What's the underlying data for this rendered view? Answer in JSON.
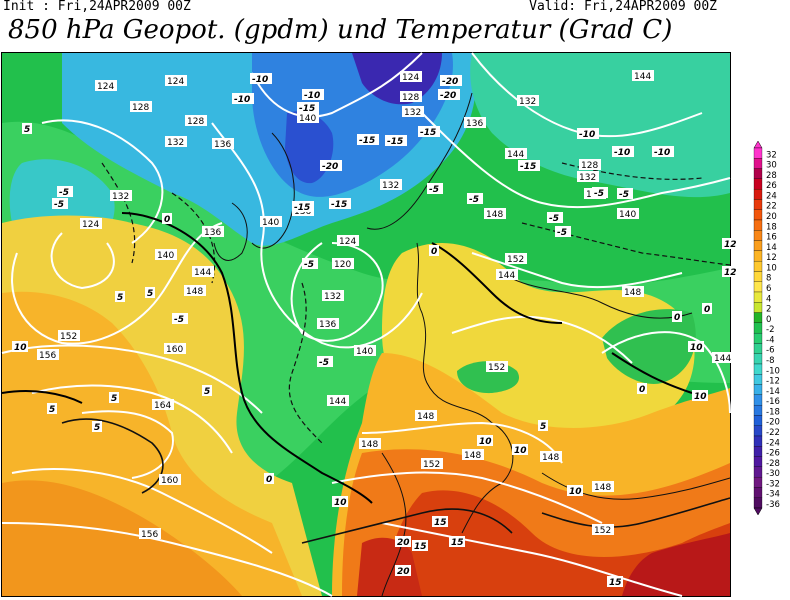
{
  "header": {
    "init_label": "Init : Fri,24APR2009 00Z",
    "valid_label": "Valid: Fri,24APR2009 00Z",
    "title": "850 hPa Geopot. (gpdm) und Temperatur (Grad C)"
  },
  "legend": {
    "ticks": [
      "32",
      "30",
      "28",
      "26",
      "24",
      "22",
      "20",
      "18",
      "16",
      "14",
      "12",
      "10",
      "8",
      "6",
      "4",
      "2",
      "0",
      "-2",
      "-4",
      "-6",
      "-8",
      "-10",
      "-12",
      "-14",
      "-16",
      "-18",
      "-20",
      "-22",
      "-24",
      "-26",
      "-28",
      "-30",
      "-32",
      "-34",
      "-36"
    ],
    "colors": [
      "#ff33cc",
      "#e0108c",
      "#b0004a",
      "#c80020",
      "#d81a0e",
      "#e83a0c",
      "#f2560c",
      "#f66e10",
      "#f88616",
      "#fa9e1c",
      "#fcb424",
      "#fec82e",
      "#ffd83a",
      "#ffe64c",
      "#e8e83c",
      "#c8e630",
      "#22b428",
      "#20c050",
      "#28cc70",
      "#30d090",
      "#38d4b0",
      "#40d8cc",
      "#40c8e0",
      "#38b0e8",
      "#3090e8",
      "#2878e0",
      "#2060d8",
      "#2848c8",
      "#3030b8",
      "#4020a8",
      "#5018a0",
      "#601890",
      "#701880",
      "#601070",
      "#500c60"
    ]
  },
  "map": {
    "contour_labels": [
      {
        "t": "124",
        "c": "w"
      },
      {
        "t": "124",
        "c": "w"
      },
      {
        "t": "124",
        "c": "w"
      },
      {
        "t": "124",
        "c": "w"
      },
      {
        "t": "124",
        "c": "w"
      },
      {
        "t": "128",
        "c": "w"
      },
      {
        "t": "128",
        "c": "w"
      },
      {
        "t": "128",
        "c": "w"
      },
      {
        "t": "128",
        "c": "w"
      },
      {
        "t": "132",
        "c": "w"
      },
      {
        "t": "132",
        "c": "w"
      },
      {
        "t": "132",
        "c": "w"
      },
      {
        "t": "132",
        "c": "w"
      },
      {
        "t": "132",
        "c": "w"
      },
      {
        "t": "132",
        "c": "w"
      },
      {
        "t": "132",
        "c": "w"
      },
      {
        "t": "136",
        "c": "w"
      },
      {
        "t": "136",
        "c": "w"
      },
      {
        "t": "136",
        "c": "w"
      },
      {
        "t": "136",
        "c": "w"
      },
      {
        "t": "136",
        "c": "w"
      },
      {
        "t": "136",
        "c": "w"
      },
      {
        "t": "140",
        "c": "w"
      },
      {
        "t": "140",
        "c": "w"
      },
      {
        "t": "140",
        "c": "w"
      },
      {
        "t": "140",
        "c": "w"
      },
      {
        "t": "140",
        "c": "w"
      },
      {
        "t": "144",
        "c": "w"
      },
      {
        "t": "144",
        "c": "w"
      },
      {
        "t": "144",
        "c": "w"
      },
      {
        "t": "144",
        "c": "w"
      },
      {
        "t": "144",
        "c": "w"
      },
      {
        "t": "144",
        "c": "w"
      },
      {
        "t": "148",
        "c": "w"
      },
      {
        "t": "148",
        "c": "w"
      },
      {
        "t": "148",
        "c": "w"
      },
      {
        "t": "148",
        "c": "w"
      },
      {
        "t": "148",
        "c": "w"
      },
      {
        "t": "148",
        "c": "w"
      },
      {
        "t": "148",
        "c": "w"
      },
      {
        "t": "148",
        "c": "w"
      },
      {
        "t": "152",
        "c": "w"
      },
      {
        "t": "152",
        "c": "w"
      },
      {
        "t": "152",
        "c": "w"
      },
      {
        "t": "152",
        "c": "w"
      },
      {
        "t": "152",
        "c": "w"
      },
      {
        "t": "156",
        "c": "w"
      },
      {
        "t": "156",
        "c": "w"
      },
      {
        "t": "160",
        "c": "w"
      },
      {
        "t": "160",
        "c": "w"
      },
      {
        "t": "164",
        "c": "w"
      },
      {
        "t": "120",
        "c": "w"
      },
      {
        "t": "12",
        "c": "w"
      },
      {
        "t": "12",
        "c": "w"
      },
      {
        "t": "-10",
        "c": "w"
      },
      {
        "t": "-10",
        "c": "w"
      },
      {
        "t": "-10",
        "c": "w"
      },
      {
        "t": "-10",
        "c": "w"
      },
      {
        "t": "-10",
        "c": "w"
      },
      {
        "t": "-10",
        "c": "w"
      },
      {
        "t": "-15",
        "c": "w"
      },
      {
        "t": "-15",
        "c": "w"
      },
      {
        "t": "-15",
        "c": "w"
      },
      {
        "t": "-15",
        "c": "w"
      },
      {
        "t": "-15",
        "c": "w"
      },
      {
        "t": "-15",
        "c": "w"
      },
      {
        "t": "-15",
        "c": "w"
      },
      {
        "t": "-20",
        "c": "w"
      },
      {
        "t": "-20",
        "c": "w"
      },
      {
        "t": "-20",
        "c": "w"
      },
      {
        "t": "-5",
        "c": "w"
      },
      {
        "t": "-5",
        "c": "w"
      },
      {
        "t": "-5",
        "c": "w"
      },
      {
        "t": "-5",
        "c": "w"
      },
      {
        "t": "-5",
        "c": "w"
      },
      {
        "t": "-5",
        "c": "w"
      },
      {
        "t": "-5",
        "c": "w"
      },
      {
        "t": "-5",
        "c": "w"
      },
      {
        "t": "-5",
        "c": "w"
      },
      {
        "t": "-5",
        "c": "w"
      },
      {
        "t": "-5",
        "c": "w"
      },
      {
        "t": "0",
        "c": "w"
      },
      {
        "t": "0",
        "c": "w"
      },
      {
        "t": "0",
        "c": "w"
      },
      {
        "t": "0",
        "c": "w"
      },
      {
        "t": "0",
        "c": "w"
      },
      {
        "t": "0",
        "c": "w"
      },
      {
        "t": "5",
        "c": "w"
      },
      {
        "t": "5",
        "c": "w"
      },
      {
        "t": "5",
        "c": "w"
      },
      {
        "t": "5",
        "c": "w"
      },
      {
        "t": "5",
        "c": "w"
      },
      {
        "t": "5",
        "c": "w"
      },
      {
        "t": "5",
        "c": "w"
      },
      {
        "t": "5",
        "c": "w"
      },
      {
        "t": "10",
        "c": "w"
      },
      {
        "t": "10",
        "c": "w"
      },
      {
        "t": "10",
        "c": "w"
      },
      {
        "t": "10",
        "c": "w"
      },
      {
        "t": "10",
        "c": "w"
      },
      {
        "t": "10",
        "c": "w"
      },
      {
        "t": "10",
        "c": "w"
      },
      {
        "t": "15",
        "c": "w"
      },
      {
        "t": "15",
        "c": "w"
      },
      {
        "t": "15",
        "c": "w"
      },
      {
        "t": "15",
        "c": "w"
      },
      {
        "t": "20",
        "c": "w"
      },
      {
        "t": "20",
        "c": "w"
      }
    ]
  },
  "colors": {
    "cold_extreme": "#2010a0",
    "cold": "#3aa0e0",
    "cool": "#20c050",
    "neutral": "#e8e840",
    "warm": "#f8a020",
    "hot": "#e04010",
    "very_hot": "#c01010"
  }
}
